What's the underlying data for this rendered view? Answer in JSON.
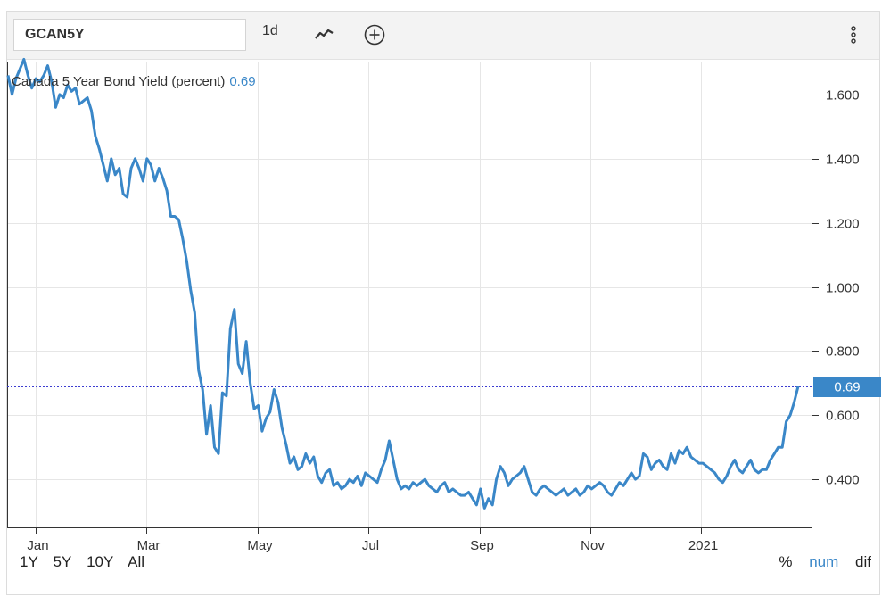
{
  "toolbar": {
    "symbol": "GCAN5Y",
    "interval": "1d",
    "chart_type_icon": "line-chart-icon",
    "add_icon": "plus-circle-icon",
    "menu_icon": "more-vertical-icon"
  },
  "legend": {
    "label": "Canada 5 Year Bond Yield (percent)",
    "value": "0.69"
  },
  "ranges": [
    "1Y",
    "5Y",
    "10Y",
    "All"
  ],
  "modes": [
    {
      "label": "%",
      "active": false
    },
    {
      "label": "num",
      "active": true
    },
    {
      "label": "dif",
      "active": false
    }
  ],
  "colors": {
    "line": "#3a87c8",
    "last_value_bg": "#3a87c8",
    "grid": "#e6e6e6",
    "last_line": "#3d3dd1"
  },
  "chart_data": {
    "type": "line",
    "title": "",
    "xlabel": "",
    "ylabel": "",
    "x_ticks": [
      "Jan",
      "Mar",
      "May",
      "Jul",
      "Sep",
      "Nov",
      "2021"
    ],
    "y_ticks": [
      "1.600",
      "1.400",
      "1.200",
      "1.000",
      "0.800",
      "0.600",
      "0.400"
    ],
    "ylim": [
      0.25,
      1.7
    ],
    "last_value_label": "0.69",
    "grid": true,
    "series": [
      {
        "values": [
          1.66,
          1.6,
          1.65,
          1.68,
          1.71,
          1.66,
          1.62,
          1.65,
          1.64,
          1.66,
          1.69,
          1.64,
          1.56,
          1.6,
          1.59,
          1.63,
          1.61,
          1.62,
          1.57,
          1.58,
          1.59,
          1.55,
          1.47,
          1.43,
          1.38,
          1.33,
          1.4,
          1.35,
          1.37,
          1.29,
          1.28,
          1.37,
          1.4,
          1.37,
          1.33,
          1.4,
          1.38,
          1.33,
          1.37,
          1.34,
          1.3,
          1.22,
          1.22,
          1.21,
          1.15,
          1.08,
          0.99,
          0.92,
          0.74,
          0.68,
          0.54,
          0.63,
          0.5,
          0.48,
          0.67,
          0.66,
          0.87,
          0.93,
          0.76,
          0.73,
          0.83,
          0.7,
          0.62,
          0.63,
          0.55,
          0.59,
          0.61,
          0.68,
          0.64,
          0.56,
          0.51,
          0.45,
          0.47,
          0.43,
          0.44,
          0.48,
          0.45,
          0.47,
          0.41,
          0.39,
          0.42,
          0.43,
          0.38,
          0.39,
          0.37,
          0.38,
          0.4,
          0.39,
          0.41,
          0.38,
          0.42,
          0.41,
          0.4,
          0.39,
          0.43,
          0.46,
          0.52,
          0.46,
          0.4,
          0.37,
          0.38,
          0.37,
          0.39,
          0.38,
          0.39,
          0.4,
          0.38,
          0.37,
          0.36,
          0.38,
          0.39,
          0.36,
          0.37,
          0.36,
          0.35,
          0.35,
          0.36,
          0.34,
          0.32,
          0.37,
          0.31,
          0.34,
          0.32,
          0.4,
          0.44,
          0.42,
          0.38,
          0.4,
          0.41,
          0.42,
          0.44,
          0.4,
          0.36,
          0.35,
          0.37,
          0.38,
          0.37,
          0.36,
          0.35,
          0.36,
          0.37,
          0.35,
          0.36,
          0.37,
          0.35,
          0.36,
          0.38,
          0.37,
          0.38,
          0.39,
          0.38,
          0.36,
          0.35,
          0.37,
          0.39,
          0.38,
          0.4,
          0.42,
          0.4,
          0.41,
          0.48,
          0.47,
          0.43,
          0.45,
          0.46,
          0.44,
          0.43,
          0.48,
          0.45,
          0.49,
          0.48,
          0.5,
          0.47,
          0.46,
          0.45,
          0.45,
          0.44,
          0.43,
          0.42,
          0.4,
          0.39,
          0.41,
          0.44,
          0.46,
          0.43,
          0.42,
          0.44,
          0.46,
          0.43,
          0.42,
          0.43,
          0.43,
          0.46,
          0.48,
          0.5,
          0.5,
          0.58,
          0.6,
          0.64,
          0.69
        ]
      }
    ]
  }
}
